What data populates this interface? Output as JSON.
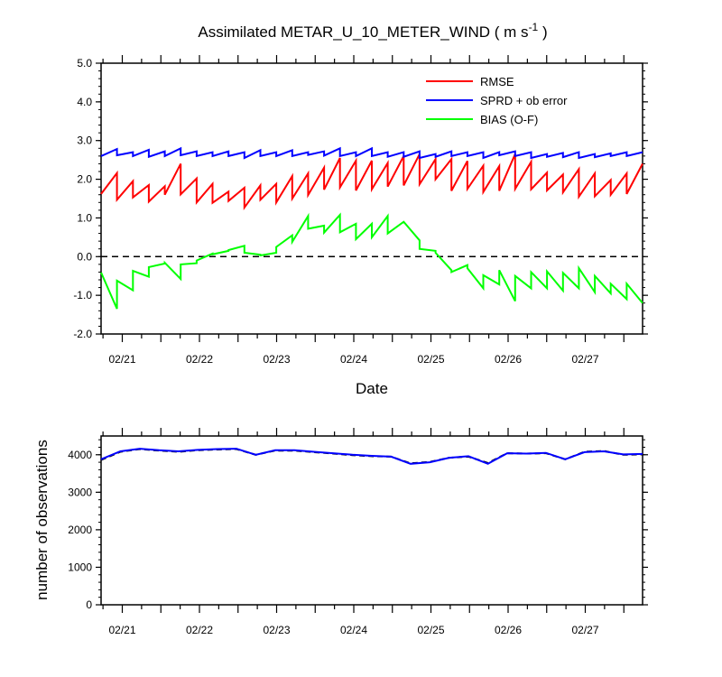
{
  "title": {
    "main": "Assimilated METAR_U_10_METER_WIND ( m s",
    "exp": "-1",
    "close": " )"
  },
  "chart_data": [
    {
      "type": "line",
      "x_label": "Date",
      "x_tick_labels": [
        "02/21",
        "02/22",
        "02/23",
        "02/24",
        "02/25",
        "02/26",
        "02/27"
      ],
      "ylim": [
        -2.0,
        5.0
      ],
      "y_tick_labels": [
        "-2.0",
        "-1.0",
        "0.0",
        "1.0",
        "2.0",
        "3.0",
        "4.0",
        "5.0"
      ],
      "y_ticks": [
        -2,
        -1,
        0,
        1,
        2,
        3,
        4,
        5
      ],
      "legend_placement": "top-right",
      "reference_line": {
        "y": 0,
        "style": "dashed",
        "color": "#000000"
      },
      "series": [
        {
          "name": "RMSE",
          "color": "#ff0000",
          "values": [
            [
              1.62,
              2.16
            ],
            [
              1.47,
              1.95
            ],
            [
              1.53,
              1.85
            ],
            [
              1.42,
              1.82
            ],
            [
              1.6,
              2.4
            ],
            [
              1.61,
              2.02
            ],
            [
              1.4,
              1.88
            ],
            [
              1.39,
              1.68
            ],
            [
              1.44,
              1.78
            ],
            [
              1.27,
              1.84
            ],
            [
              1.47,
              1.88
            ],
            [
              1.4,
              2.08
            ],
            [
              1.5,
              2.15
            ],
            [
              1.59,
              2.3
            ],
            [
              1.73,
              2.55
            ],
            [
              1.79,
              2.48
            ],
            [
              1.71,
              2.48
            ],
            [
              1.74,
              2.42
            ],
            [
              1.81,
              2.6
            ],
            [
              1.84,
              2.65
            ],
            [
              1.87,
              2.52
            ],
            [
              2.0,
              2.52
            ],
            [
              1.7,
              2.47
            ],
            [
              1.75,
              2.35
            ],
            [
              1.67,
              2.34
            ],
            [
              1.7,
              2.65
            ],
            [
              1.75,
              2.45
            ],
            [
              1.74,
              2.17
            ],
            [
              1.71,
              2.12
            ],
            [
              1.66,
              2.26
            ],
            [
              1.55,
              2.15
            ],
            [
              1.56,
              1.98
            ],
            [
              1.6,
              2.15
            ],
            [
              1.62,
              2.4
            ]
          ]
        },
        {
          "name": "SPRD + ob error",
          "color": "#0000ff",
          "values": [
            [
              2.6,
              2.78
            ],
            [
              2.62,
              2.7
            ],
            [
              2.6,
              2.76
            ],
            [
              2.58,
              2.72
            ],
            [
              2.6,
              2.8
            ],
            [
              2.62,
              2.72
            ],
            [
              2.6,
              2.7
            ],
            [
              2.6,
              2.72
            ],
            [
              2.6,
              2.7
            ],
            [
              2.55,
              2.75
            ],
            [
              2.6,
              2.7
            ],
            [
              2.6,
              2.75
            ],
            [
              2.6,
              2.7
            ],
            [
              2.63,
              2.72
            ],
            [
              2.61,
              2.8
            ],
            [
              2.6,
              2.7
            ],
            [
              2.6,
              2.8
            ],
            [
              2.6,
              2.7
            ],
            [
              2.58,
              2.7
            ],
            [
              2.58,
              2.72
            ],
            [
              2.55,
              2.65
            ],
            [
              2.58,
              2.72
            ],
            [
              2.6,
              2.7
            ],
            [
              2.6,
              2.7
            ],
            [
              2.55,
              2.7
            ],
            [
              2.62,
              2.72
            ],
            [
              2.6,
              2.7
            ],
            [
              2.55,
              2.65
            ],
            [
              2.58,
              2.68
            ],
            [
              2.57,
              2.7
            ],
            [
              2.55,
              2.65
            ],
            [
              2.57,
              2.67
            ],
            [
              2.6,
              2.7
            ],
            [
              2.6,
              2.7
            ]
          ]
        },
        {
          "name": "BIAS (O-F)",
          "color": "#00ff00",
          "values": [
            [
              -0.41,
              -1.35
            ],
            [
              -0.62,
              -0.87
            ],
            [
              -0.37,
              -0.52
            ],
            [
              -0.27,
              -0.18
            ],
            [
              -0.16,
              -0.58
            ],
            [
              -0.2,
              -0.17
            ],
            [
              -0.1,
              0.08
            ],
            [
              0.06,
              0.15
            ],
            [
              0.17,
              0.28
            ],
            [
              0.1,
              0.05
            ],
            [
              0.03,
              0.1
            ],
            [
              0.25,
              0.55
            ],
            [
              0.38,
              1.05
            ],
            [
              0.72,
              0.8
            ],
            [
              0.62,
              1.08
            ],
            [
              0.63,
              0.85
            ],
            [
              0.45,
              0.85
            ],
            [
              0.5,
              1.05
            ],
            [
              0.6,
              0.9
            ],
            [
              0.9,
              0.42
            ],
            [
              0.2,
              0.15
            ],
            [
              0.1,
              -0.35
            ],
            [
              -0.4,
              -0.22
            ],
            [
              -0.3,
              -0.82
            ],
            [
              -0.48,
              -0.72
            ],
            [
              -0.35,
              -1.15
            ],
            [
              -0.5,
              -0.82
            ],
            [
              -0.4,
              -0.82
            ],
            [
              -0.38,
              -0.88
            ],
            [
              -0.42,
              -0.82
            ],
            [
              -0.3,
              -0.92
            ],
            [
              -0.5,
              -0.95
            ],
            [
              -0.7,
              -1.1
            ],
            [
              -0.7,
              -1.2
            ]
          ]
        }
      ]
    },
    {
      "type": "line",
      "y_label": "number of observations",
      "x_tick_labels": [
        "02/21",
        "02/22",
        "02/23",
        "02/24",
        "02/25",
        "02/26",
        "02/27"
      ],
      "ylim": [
        0,
        4500
      ],
      "y_tick_labels": [
        "0",
        "1000",
        "2000",
        "3000",
        "4000"
      ],
      "y_ticks": [
        0,
        1000,
        2000,
        3000,
        4000
      ],
      "series": [
        {
          "color": "#000000",
          "style": "dashed",
          "values": [
            3860,
            4080,
            4150,
            4110,
            4080,
            4120,
            4140,
            4150,
            4000,
            4110,
            4110,
            4070,
            4030,
            3990,
            3960,
            3950,
            3770,
            3810,
            3920,
            3950,
            3780,
            4040,
            4030,
            4040,
            3880,
            4080,
            4100,
            4000,
            4010
          ]
        },
        {
          "color": "#0000ff",
          "values": [
            3880,
            4090,
            4160,
            4120,
            4090,
            4130,
            4150,
            4160,
            4000,
            4120,
            4120,
            4080,
            4040,
            4000,
            3970,
            3950,
            3760,
            3800,
            3920,
            3960,
            3760,
            4040,
            4030,
            4050,
            3880,
            4070,
            4090,
            4010,
            4020
          ]
        }
      ]
    }
  ]
}
